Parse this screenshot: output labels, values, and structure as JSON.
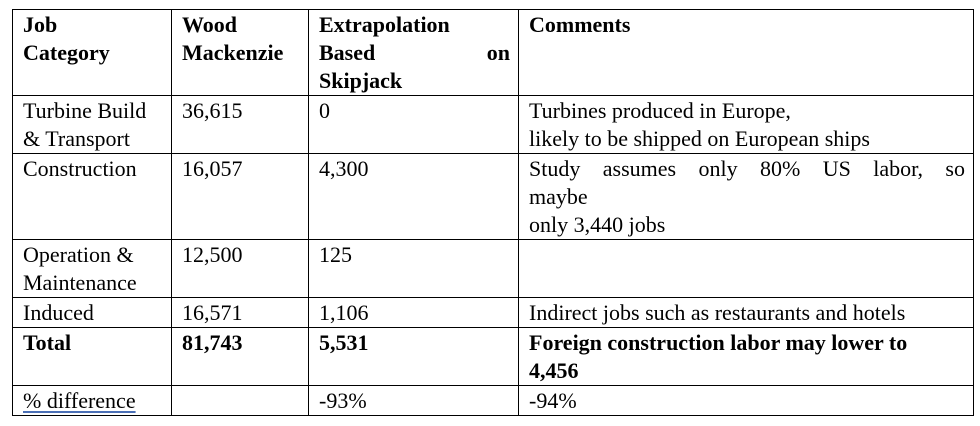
{
  "header": {
    "job_category": [
      "Job",
      "Category"
    ],
    "wood_mackenzie": [
      "Wood",
      "Mackenzie"
    ],
    "extrapolation": {
      "line1": "Extrapolation",
      "line2_left": "Based",
      "line2_right": "on",
      "line3": "Skipjack"
    },
    "comments": "Comments"
  },
  "rows": [
    {
      "category": [
        "Turbine Build",
        "& Transport"
      ],
      "wood_mackenzie": "36,615",
      "extrapolation": "0",
      "comment": [
        "Turbines produced in Europe,",
        "likely to be shipped on European ships"
      ]
    },
    {
      "category": [
        "Construction"
      ],
      "wood_mackenzie": "16,057",
      "extrapolation": "4,300",
      "comment": [
        "Study assumes only 80% US labor, so",
        "maybe",
        "only 3,440 jobs"
      ]
    },
    {
      "category": [
        "Operation &",
        "Maintenance"
      ],
      "wood_mackenzie": "12,500",
      "extrapolation": "125",
      "comment": []
    },
    {
      "category": [
        "Induced"
      ],
      "wood_mackenzie": "16,571",
      "extrapolation": "1,106",
      "comment": [
        "Indirect jobs such as restaurants and hotels"
      ]
    }
  ],
  "total": {
    "category": "Total",
    "wood_mackenzie": "81,743",
    "extrapolation": "5,531",
    "comment": [
      "Foreign construction labor may lower to",
      "4,456"
    ]
  },
  "difference": {
    "category": "% difference",
    "wood_mackenzie": "",
    "extrapolation": "-93%",
    "comment": "-94%"
  }
}
